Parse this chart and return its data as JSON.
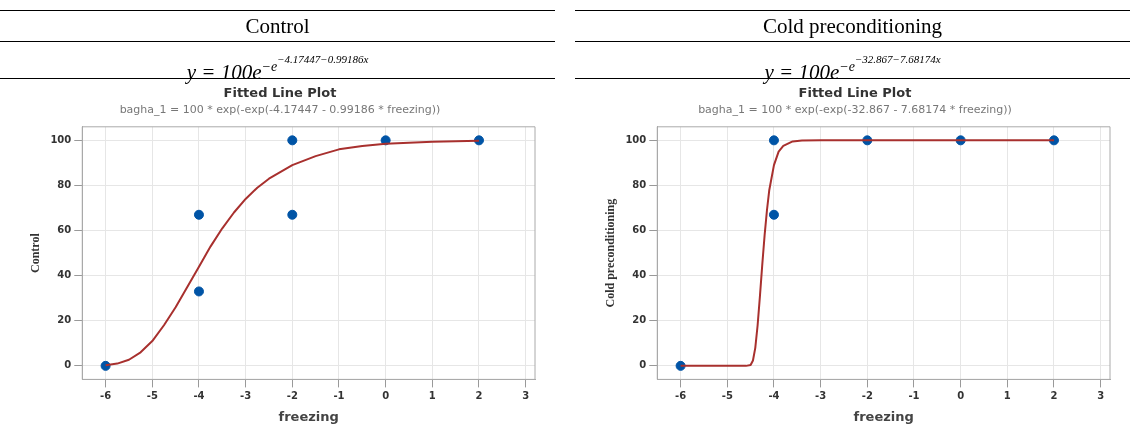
{
  "chart_data": [
    {
      "type": "scatter",
      "title": "Fitted Line Plot",
      "subtitle": "bagha_1 = 100 * exp(-exp(-4.17447 - 0.99186 * freezing))",
      "xlabel": "freezing",
      "ylabel": "Control",
      "annotations": [
        "Control",
        "y = 100e$^{−e}$$^{−4.17447−0.99186x}$"
      ],
      "xlim": [
        -6.5,
        3.2
      ],
      "xticks": [
        -6,
        -5,
        -4,
        -3,
        -2,
        -1,
        0,
        1,
        2,
        3
      ],
      "ylim": [
        -6,
        106
      ],
      "yticks": [
        0,
        20,
        40,
        60,
        80,
        100
      ],
      "grid": true,
      "legend": false,
      "series": [
        {
          "type": "scatter",
          "color": "#0054a6",
          "marker": "circle",
          "x": [
            -6,
            -4,
            -4,
            -2,
            -2,
            0,
            2
          ],
          "values": [
            0,
            67,
            33,
            100,
            67,
            100,
            100
          ]
        },
        {
          "type": "line",
          "color": "#a8302e",
          "marker": "none",
          "line_style": "solid",
          "x": [
            -6,
            -5.75,
            -5.5,
            -5.25,
            -5,
            -4.75,
            -4.5,
            -4.25,
            -4,
            -3.75,
            -3.5,
            -3.25,
            -3,
            -2.75,
            -2.5,
            -2,
            -1.5,
            -1,
            -0.5,
            0,
            1,
            2
          ],
          "values": [
            0.3,
            1,
            2.7,
            6,
            11,
            18,
            26,
            35,
            44,
            53,
            61,
            68,
            74,
            79,
            83,
            89,
            93,
            96,
            97.5,
            98.5,
            99.4,
            99.8
          ]
        }
      ]
    },
    {
      "type": "scatter",
      "title": "Fitted Line Plot",
      "subtitle": "bagha_1 = 100 * exp(-exp(-32.867 - 7.68174 * freezing))",
      "xlabel": "freezing",
      "ylabel": "Cold preconditioning",
      "annotations": [
        "Cold preconditioning",
        "y = 100e$^{−e}$$^{−32.867−7.68174x}$"
      ],
      "xlim": [
        -6.5,
        3.2
      ],
      "xticks": [
        -6,
        -5,
        -4,
        -3,
        -2,
        -1,
        0,
        1,
        2,
        3
      ],
      "ylim": [
        -6,
        106
      ],
      "yticks": [
        0,
        20,
        40,
        60,
        80,
        100
      ],
      "grid": true,
      "legend": false,
      "series": [
        {
          "type": "scatter",
          "color": "#0054a6",
          "marker": "circle",
          "x": [
            -6,
            -4,
            -4,
            -2,
            0,
            2
          ],
          "values": [
            0,
            100,
            67,
            100,
            100,
            100
          ]
        },
        {
          "type": "line",
          "color": "#a8302e",
          "marker": "none",
          "line_style": "solid",
          "x": [
            -6,
            -5,
            -4.6,
            -4.5,
            -4.45,
            -4.4,
            -4.35,
            -4.3,
            -4.25,
            -4.2,
            -4.15,
            -4.1,
            -4,
            -3.9,
            -3.8,
            -3.6,
            -3.4,
            -3,
            2
          ],
          "values": [
            0,
            0,
            0,
            0.4,
            2.4,
            8,
            18,
            31,
            45,
            58,
            69,
            78,
            89,
            95,
            97.5,
            99.5,
            99.9,
            100,
            100
          ]
        }
      ]
    }
  ]
}
